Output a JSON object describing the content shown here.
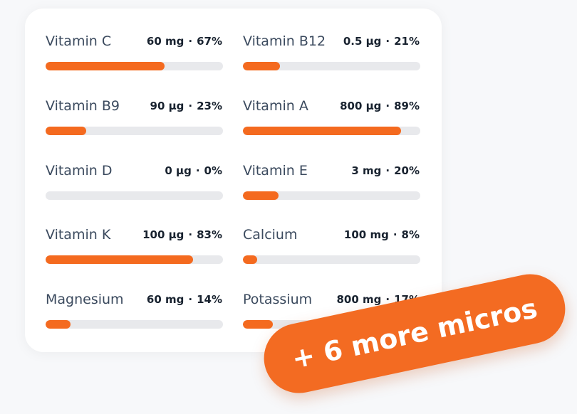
{
  "separator": "·",
  "nutrients": [
    {
      "name": "Vitamin C",
      "amount": "60 mg",
      "percent": {
        "value": 67,
        "label": "67%"
      }
    },
    {
      "name": "Vitamin B12",
      "amount": "0.5 µg",
      "percent": {
        "value": 21,
        "label": "21%"
      }
    },
    {
      "name": "Vitamin B9",
      "amount": "90 µg",
      "percent": {
        "value": 23,
        "label": "23%"
      }
    },
    {
      "name": "Vitamin A",
      "amount": "800 µg",
      "percent": {
        "value": 89,
        "label": "89%"
      }
    },
    {
      "name": "Vitamin D",
      "amount": "0 µg",
      "percent": {
        "value": 0,
        "label": "0%"
      }
    },
    {
      "name": "Vitamin E",
      "amount": "3 mg",
      "percent": {
        "value": 20,
        "label": "20%"
      }
    },
    {
      "name": "Vitamin K",
      "amount": "100 µg",
      "percent": {
        "value": 83,
        "label": "83%"
      }
    },
    {
      "name": "Calcium",
      "amount": "100 mg",
      "percent": {
        "value": 8,
        "label": "8%"
      }
    },
    {
      "name": "Magnesium",
      "amount": "60 mg",
      "percent": {
        "value": 14,
        "label": "14%"
      }
    },
    {
      "name": "Potassium",
      "amount": "800 mg",
      "percent": {
        "value": 17,
        "label": "17%"
      }
    }
  ],
  "badge": "+ 6 more micros"
}
